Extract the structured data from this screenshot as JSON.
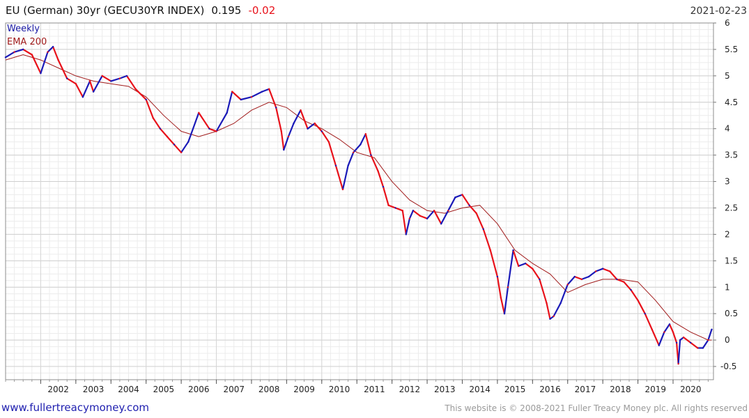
{
  "chart_data": {
    "type": "line",
    "title": "EU (German) 30yr (GECU30YR INDEX)",
    "last_value": "0.195",
    "change": "-0.02",
    "date": "2021-02-23",
    "legend": [
      "Weekly",
      "EMA 200"
    ],
    "xlabel": "",
    "ylabel": "",
    "ylim": [
      -0.75,
      6
    ],
    "xlim": [
      2001.0,
      2021.15
    ],
    "y_ticks": [
      6,
      5.5,
      5,
      4.5,
      4,
      3.5,
      3,
      2.5,
      2,
      1.5,
      1,
      0.5,
      0,
      -0.5
    ],
    "y_tick_labels": [
      "6",
      "5.5",
      "5",
      "4.5",
      "4",
      "3.5",
      "3",
      "2.5",
      "2",
      "1.5",
      "1",
      "0.5",
      "0",
      "-0.5"
    ],
    "x_ticks": [
      2002,
      2003,
      2004,
      2005,
      2006,
      2007,
      2008,
      2009,
      2010,
      2011,
      2012,
      2013,
      2014,
      2015,
      2016,
      2017,
      2018,
      2019,
      2020
    ],
    "x_tick_labels": [
      "2002",
      "2003",
      "2004",
      "2005",
      "2006",
      "2007",
      "2008",
      "2009",
      "2010",
      "2011",
      "2012",
      "2013",
      "2014",
      "2015",
      "2016",
      "2017",
      "2018",
      "2019",
      "2020"
    ],
    "grid": true,
    "legend_position": "top-left",
    "series": [
      {
        "name": "Weekly",
        "color": "#1a1ab8",
        "alt_color": "#e8111a",
        "x": [
          2001.0,
          2001.25,
          2001.5,
          2001.75,
          2002.0,
          2002.2,
          2002.35,
          2002.5,
          2002.75,
          2003.0,
          2003.2,
          2003.4,
          2003.5,
          2003.75,
          2004.0,
          2004.25,
          2004.45,
          2004.7,
          2005.0,
          2005.2,
          2005.4,
          2005.6,
          2005.8,
          2006.0,
          2006.2,
          2006.5,
          2006.8,
          2007.0,
          2007.3,
          2007.45,
          2007.7,
          2008.0,
          2008.3,
          2008.5,
          2008.7,
          2008.85,
          2008.92,
          2009.05,
          2009.2,
          2009.4,
          2009.6,
          2009.8,
          2010.0,
          2010.2,
          2010.4,
          2010.6,
          2010.75,
          2010.9,
          2011.1,
          2011.25,
          2011.4,
          2011.6,
          2011.75,
          2011.9,
          2012.1,
          2012.3,
          2012.4,
          2012.5,
          2012.6,
          2012.8,
          2013.0,
          2013.2,
          2013.4,
          2013.6,
          2013.8,
          2014.0,
          2014.2,
          2014.4,
          2014.6,
          2014.8,
          2015.0,
          2015.1,
          2015.2,
          2015.3,
          2015.45,
          2015.6,
          2015.8,
          2016.0,
          2016.2,
          2016.4,
          2016.5,
          2016.6,
          2016.8,
          2017.0,
          2017.2,
          2017.4,
          2017.6,
          2017.8,
          2018.0,
          2018.2,
          2018.4,
          2018.6,
          2018.8,
          2019.0,
          2019.2,
          2019.4,
          2019.6,
          2019.75,
          2019.9,
          2020.0,
          2020.1,
          2020.15,
          2020.2,
          2020.3,
          2020.5,
          2020.7,
          2020.85,
          2021.0,
          2021.1
        ],
        "values": [
          5.35,
          5.45,
          5.5,
          5.4,
          5.05,
          5.45,
          5.55,
          5.3,
          4.95,
          4.85,
          4.6,
          4.9,
          4.7,
          5.0,
          4.9,
          4.95,
          5.0,
          4.75,
          4.55,
          4.2,
          4.0,
          3.85,
          3.7,
          3.55,
          3.75,
          4.3,
          4.0,
          3.95,
          4.3,
          4.7,
          4.55,
          4.6,
          4.7,
          4.75,
          4.4,
          3.95,
          3.6,
          3.85,
          4.1,
          4.35,
          4.0,
          4.1,
          3.95,
          3.75,
          3.3,
          2.85,
          3.3,
          3.55,
          3.7,
          3.9,
          3.5,
          3.2,
          2.9,
          2.55,
          2.5,
          2.45,
          2.0,
          2.3,
          2.45,
          2.35,
          2.3,
          2.45,
          2.2,
          2.45,
          2.7,
          2.75,
          2.55,
          2.4,
          2.1,
          1.7,
          1.2,
          0.8,
          0.5,
          1.0,
          1.7,
          1.4,
          1.45,
          1.35,
          1.15,
          0.7,
          0.4,
          0.45,
          0.7,
          1.05,
          1.2,
          1.15,
          1.2,
          1.3,
          1.35,
          1.3,
          1.15,
          1.1,
          0.95,
          0.75,
          0.5,
          0.2,
          -0.1,
          0.15,
          0.3,
          0.15,
          -0.05,
          -0.45,
          0.0,
          0.05,
          -0.05,
          -0.15,
          -0.15,
          0.0,
          0.2
        ]
      },
      {
        "name": "EMA 200",
        "color": "#a11b1b",
        "x": [
          2001.0,
          2001.5,
          2002.0,
          2002.5,
          2003.0,
          2003.5,
          2004.0,
          2004.5,
          2005.0,
          2005.5,
          2006.0,
          2006.5,
          2007.0,
          2007.5,
          2008.0,
          2008.5,
          2009.0,
          2009.5,
          2010.0,
          2010.5,
          2011.0,
          2011.5,
          2012.0,
          2012.5,
          2013.0,
          2013.5,
          2014.0,
          2014.5,
          2015.0,
          2015.5,
          2016.0,
          2016.5,
          2017.0,
          2017.5,
          2018.0,
          2018.5,
          2019.0,
          2019.5,
          2020.0,
          2020.5,
          2021.0,
          2021.1
        ],
        "values": [
          5.3,
          5.4,
          5.3,
          5.15,
          5.0,
          4.9,
          4.85,
          4.8,
          4.6,
          4.25,
          3.95,
          3.85,
          3.95,
          4.1,
          4.35,
          4.5,
          4.4,
          4.15,
          4.0,
          3.8,
          3.55,
          3.45,
          3.0,
          2.65,
          2.45,
          2.4,
          2.5,
          2.55,
          2.2,
          1.7,
          1.45,
          1.25,
          0.9,
          1.05,
          1.15,
          1.15,
          1.1,
          0.75,
          0.35,
          0.15,
          0.0,
          0.0
        ]
      }
    ]
  },
  "footer": {
    "website": "www.fullertreacymoney.com",
    "copyright": "This website is © 2008-2021 Fuller Treacy Money plc. All rights reserved"
  }
}
